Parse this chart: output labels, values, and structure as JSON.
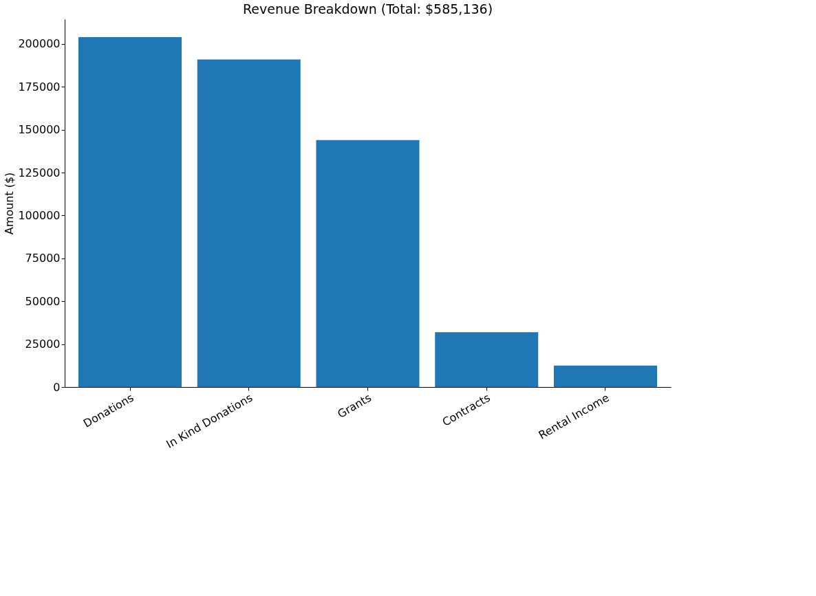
{
  "chart_data": {
    "type": "bar",
    "title": "Revenue Breakdown (Total: $585,136)",
    "ylabel": "Amount ($)",
    "categories": [
      "Donations",
      "In Kind Donations",
      "Grants",
      "Contracts",
      "Rental Income"
    ],
    "values": [
      204000,
      191000,
      144000,
      32000,
      12500
    ],
    "color": "#1f77b4",
    "ylim": [
      0,
      214400
    ],
    "yticks": [
      0,
      25000,
      50000,
      75000,
      100000,
      125000,
      150000,
      175000,
      200000
    ],
    "grid": false
  }
}
